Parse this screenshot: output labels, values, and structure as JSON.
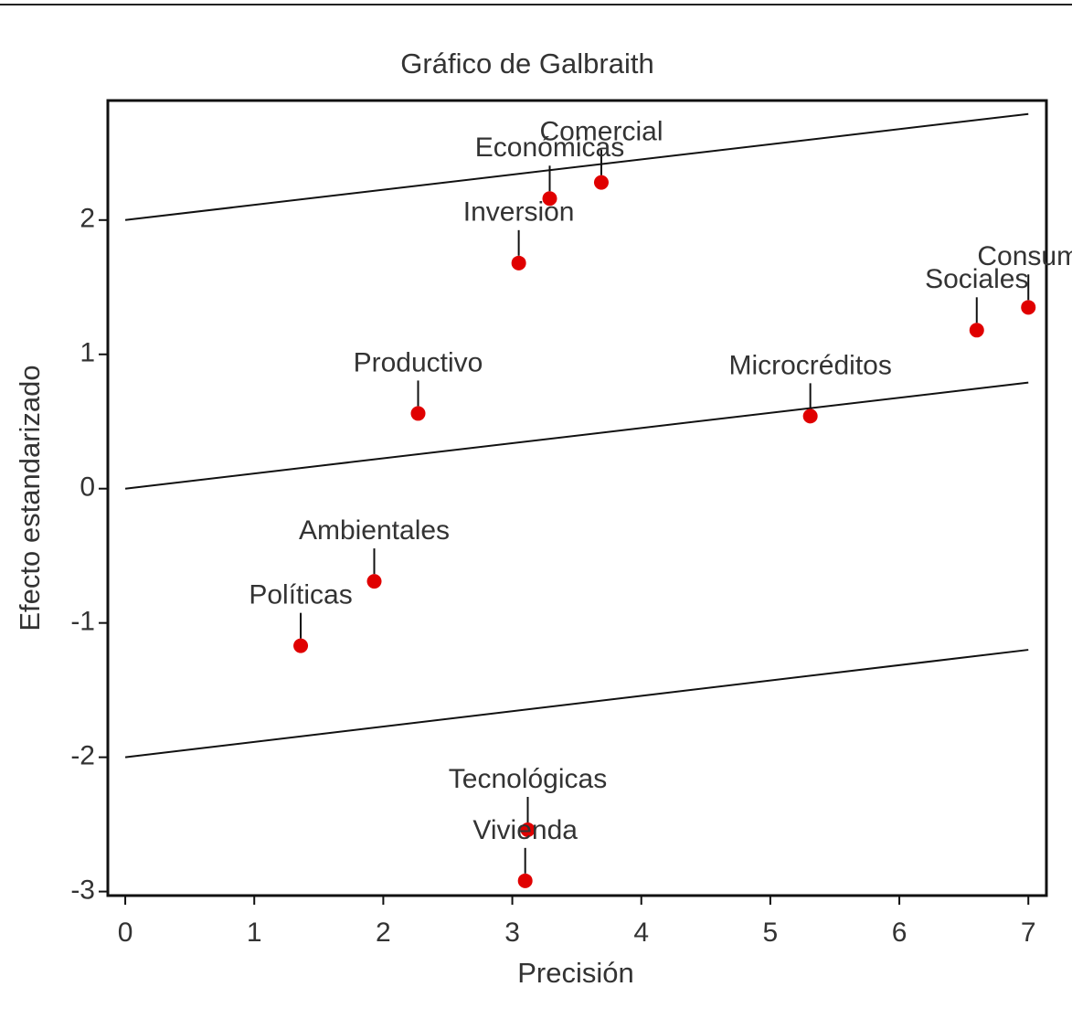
{
  "chart_data": {
    "type": "scatter",
    "title": "Gráfico de Galbraith",
    "xlabel": "Precisión",
    "ylabel": "Efecto estandarizado",
    "labels": [
      "Comercial",
      "Económicas",
      "Inversion",
      "Consum",
      "Sociales",
      "Productivo",
      "Microcréditos",
      "Ambientales",
      "Políticas",
      "Tecnológicas",
      "Vivienda"
    ],
    "x": [
      3.69,
      3.29,
      3.05,
      7.0,
      6.6,
      2.27,
      5.31,
      1.93,
      1.36,
      3.12,
      3.1
    ],
    "values": [
      2.28,
      2.16,
      1.68,
      1.35,
      1.18,
      0.56,
      0.54,
      -0.69,
      -1.17,
      -2.54,
      -2.92
    ],
    "color": "#e00000",
    "lines": [
      {
        "x": [
          0,
          7
        ],
        "y": [
          2,
          2.79
        ]
      },
      {
        "x": [
          0,
          7
        ],
        "y": [
          0,
          0.79
        ]
      },
      {
        "x": [
          0,
          7
        ],
        "y": [
          -2,
          -1.2
        ]
      }
    ],
    "xlim": [
      -0.135,
      7.14
    ],
    "ylim": [
      -3.03,
      2.89
    ],
    "xticks": [
      0,
      1,
      2,
      3,
      4,
      5,
      6,
      7
    ],
    "yticks": [
      -3,
      -2,
      -1,
      0,
      1,
      2
    ]
  }
}
